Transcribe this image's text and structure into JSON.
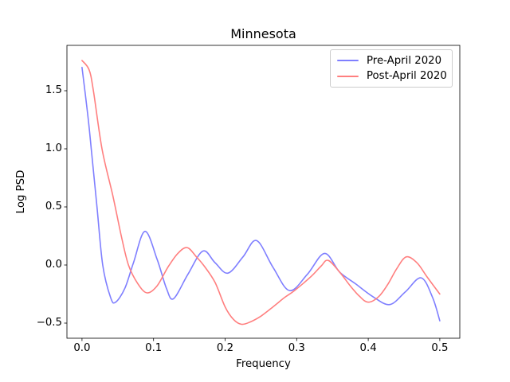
{
  "figure": {
    "background": "#ffffff",
    "frame_color": "#000000",
    "text_color": "#000000"
  },
  "chart_data": {
    "type": "line",
    "title": "Minnesota",
    "xlabel": "Frequency",
    "ylabel": "Log PSD",
    "xlim": [
      -0.021,
      0.528
    ],
    "ylim": [
      -0.63,
      1.89
    ],
    "xticks": [
      0.0,
      0.1,
      0.2,
      0.3,
      0.4,
      0.5
    ],
    "xtick_labels": [
      "0.0",
      "0.1",
      "0.2",
      "0.3",
      "0.4",
      "0.5"
    ],
    "yticks": [
      -0.5,
      0.0,
      0.5,
      1.0,
      1.5
    ],
    "ytick_labels": [
      "−0.5",
      "0.0",
      "0.5",
      "1.0",
      "1.5"
    ],
    "grid": false,
    "legend": {
      "position": "upper right",
      "frame": true,
      "border_color": "#cccccc"
    },
    "series": [
      {
        "name": "Pre-April 2020",
        "color": "#7f7fff",
        "points": [
          [
            0.0,
            1.7
          ],
          [
            0.008,
            1.3
          ],
          [
            0.013,
            1.0
          ],
          [
            0.021,
            0.5
          ],
          [
            0.029,
            0.0
          ],
          [
            0.04,
            -0.28
          ],
          [
            0.047,
            -0.32
          ],
          [
            0.06,
            -0.2
          ],
          [
            0.072,
            0.02
          ],
          [
            0.088,
            0.29
          ],
          [
            0.105,
            0.05
          ],
          [
            0.118,
            -0.2
          ],
          [
            0.128,
            -0.29
          ],
          [
            0.148,
            -0.08
          ],
          [
            0.169,
            0.12
          ],
          [
            0.186,
            0.02
          ],
          [
            0.204,
            -0.07
          ],
          [
            0.225,
            0.07
          ],
          [
            0.244,
            0.21
          ],
          [
            0.267,
            -0.02
          ],
          [
            0.29,
            -0.22
          ],
          [
            0.315,
            -0.08
          ],
          [
            0.339,
            0.1
          ],
          [
            0.36,
            -0.06
          ],
          [
            0.382,
            -0.16
          ],
          [
            0.406,
            -0.27
          ],
          [
            0.43,
            -0.34
          ],
          [
            0.452,
            -0.23
          ],
          [
            0.474,
            -0.11
          ],
          [
            0.49,
            -0.28
          ],
          [
            0.5,
            -0.48
          ]
        ]
      },
      {
        "name": "Post-April 2020",
        "color": "#ff7f7f",
        "points": [
          [
            0.0,
            1.76
          ],
          [
            0.01,
            1.68
          ],
          [
            0.016,
            1.5
          ],
          [
            0.028,
            1.0
          ],
          [
            0.043,
            0.6
          ],
          [
            0.055,
            0.25
          ],
          [
            0.065,
            0.0
          ],
          [
            0.078,
            -0.16
          ],
          [
            0.091,
            -0.24
          ],
          [
            0.105,
            -0.18
          ],
          [
            0.12,
            -0.02
          ],
          [
            0.134,
            0.1
          ],
          [
            0.147,
            0.15
          ],
          [
            0.16,
            0.07
          ],
          [
            0.171,
            -0.01
          ],
          [
            0.186,
            -0.15
          ],
          [
            0.2,
            -0.36
          ],
          [
            0.212,
            -0.47
          ],
          [
            0.223,
            -0.51
          ],
          [
            0.235,
            -0.49
          ],
          [
            0.25,
            -0.44
          ],
          [
            0.267,
            -0.36
          ],
          [
            0.283,
            -0.28
          ],
          [
            0.297,
            -0.22
          ],
          [
            0.32,
            -0.1
          ],
          [
            0.334,
            -0.01
          ],
          [
            0.344,
            0.04
          ],
          [
            0.36,
            -0.06
          ],
          [
            0.375,
            -0.18
          ],
          [
            0.388,
            -0.27
          ],
          [
            0.4,
            -0.32
          ],
          [
            0.415,
            -0.27
          ],
          [
            0.428,
            -0.16
          ],
          [
            0.44,
            -0.03
          ],
          [
            0.453,
            0.07
          ],
          [
            0.468,
            0.02
          ],
          [
            0.482,
            -0.1
          ],
          [
            0.5,
            -0.25
          ]
        ]
      }
    ]
  }
}
